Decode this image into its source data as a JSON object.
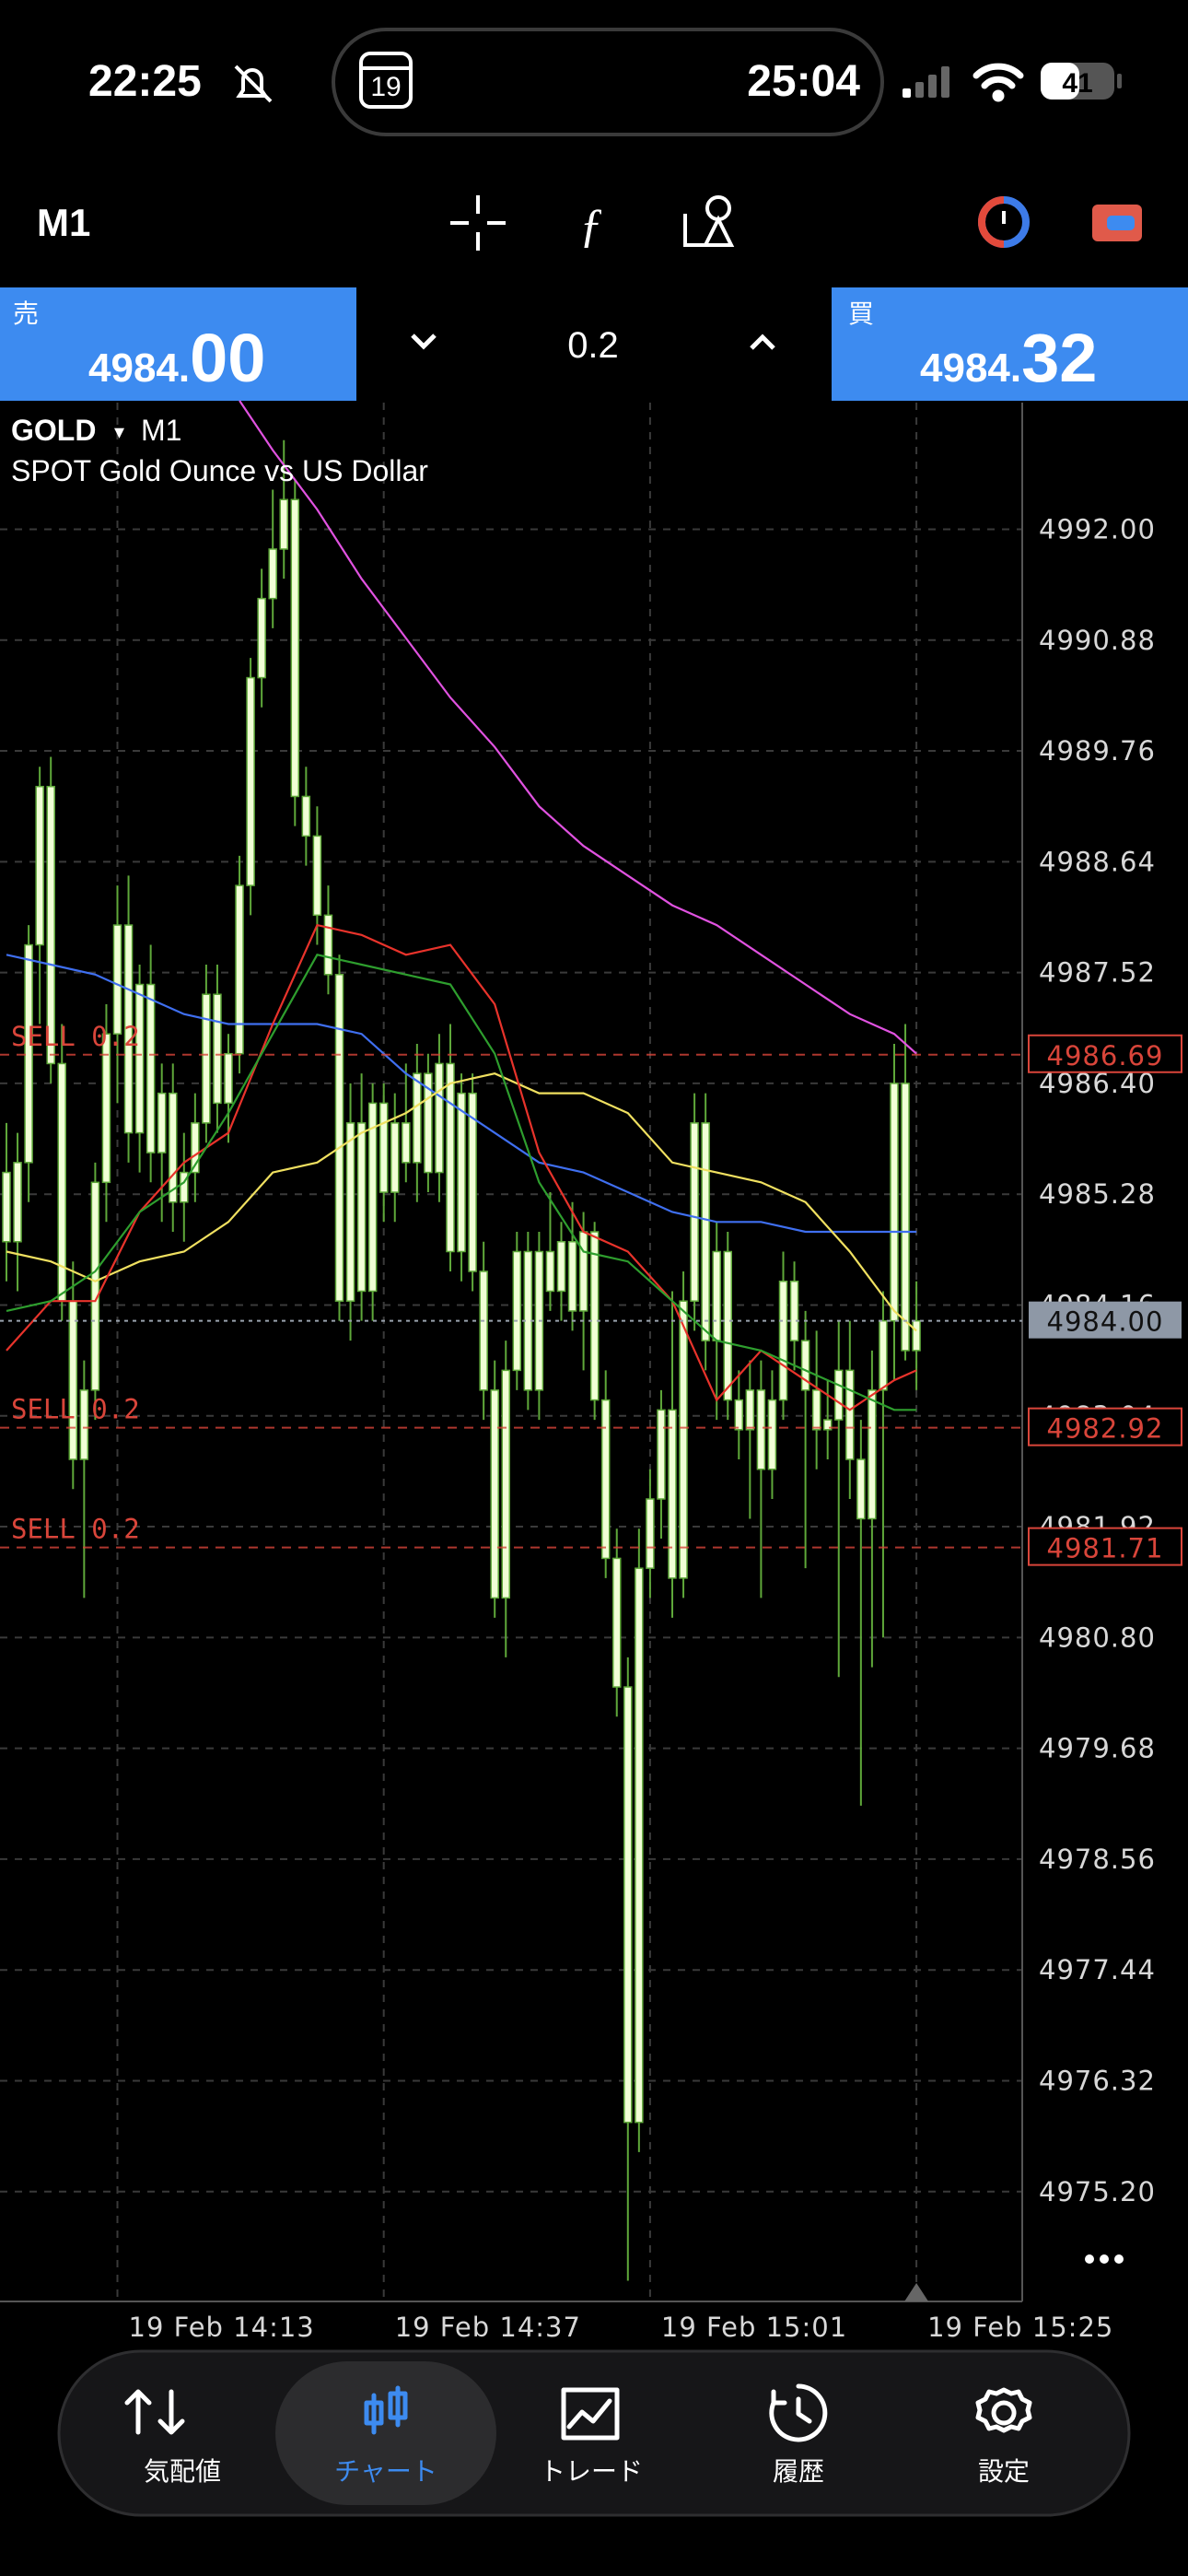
{
  "status_bar": {
    "time": "22:25",
    "calendar_day": "19",
    "timer": "25:04",
    "battery": "41"
  },
  "toolbar": {
    "timeframe": "M1"
  },
  "trade_panel": {
    "sell": {
      "label": "売",
      "price_main": "4984.",
      "price_big": "00"
    },
    "volume": "0.2",
    "buy": {
      "label": "買",
      "price_main": "4984.",
      "price_big": "32"
    }
  },
  "chart_data": {
    "type": "candlestick",
    "symbol": "GOLD",
    "timeframe": "M1",
    "subtitle": "SPOT Gold Ounce vs US Dollar",
    "categories": [
      null,
      null,
      null,
      null,
      null,
      null,
      null,
      null,
      null,
      null,
      "19 Feb 14:13",
      null,
      null,
      null,
      null,
      null,
      null,
      null,
      null,
      null,
      null,
      null,
      null,
      null,
      null,
      null,
      null,
      null,
      null,
      null,
      null,
      null,
      null,
      null,
      "19 Feb 14:37",
      null,
      null,
      null,
      null,
      null,
      null,
      null,
      null,
      null,
      null,
      null,
      null,
      null,
      null,
      null,
      null,
      null,
      null,
      null,
      null,
      null,
      null,
      null,
      "19 Feb 15:01",
      null,
      null,
      null,
      null,
      null,
      null,
      null,
      null,
      null,
      null,
      null,
      null,
      null,
      null,
      null,
      null,
      null,
      null,
      null,
      null,
      null,
      null,
      null,
      "19 Feb 15:25"
    ],
    "candles": [
      [
        4985.5,
        4986.0,
        4984.4,
        4984.8
      ],
      [
        4984.8,
        4985.9,
        4984.3,
        4985.6
      ],
      [
        4985.6,
        4988.0,
        4985.2,
        4987.8
      ],
      [
        4987.8,
        4989.6,
        4987.0,
        4989.4
      ],
      [
        4989.4,
        4989.7,
        4986.4,
        4986.6
      ],
      [
        4986.6,
        4987.0,
        4984.0,
        4984.2
      ],
      [
        4984.2,
        4984.6,
        4982.3,
        4982.6
      ],
      [
        4982.6,
        4983.6,
        4981.2,
        4983.3
      ],
      [
        4983.3,
        4985.6,
        4983.0,
        4985.4
      ],
      [
        4985.4,
        4987.2,
        4985.0,
        4986.9
      ],
      [
        4986.9,
        4988.4,
        4986.2,
        4988.0
      ],
      [
        4988.0,
        4988.5,
        4985.6,
        4985.9
      ],
      [
        4985.9,
        4987.6,
        4985.5,
        4987.4
      ],
      [
        4987.4,
        4987.8,
        4985.4,
        4985.7
      ],
      [
        4985.7,
        4986.6,
        4985.0,
        4986.3
      ],
      [
        4986.3,
        4986.6,
        4984.9,
        4985.2
      ],
      [
        4985.2,
        4985.9,
        4984.8,
        4985.5
      ],
      [
        4985.5,
        4986.3,
        4985.2,
        4986.0
      ],
      [
        4986.0,
        4987.6,
        4985.8,
        4987.3
      ],
      [
        4987.3,
        4987.6,
        4985.9,
        4986.2
      ],
      [
        4986.2,
        4986.9,
        4985.8,
        4986.7
      ],
      [
        4986.7,
        4988.7,
        4986.5,
        4988.4
      ],
      [
        4988.4,
        4990.7,
        4988.1,
        4990.5
      ],
      [
        4990.5,
        4991.6,
        4990.2,
        4991.3
      ],
      [
        4991.3,
        4992.4,
        4991.0,
        4991.8
      ],
      [
        4991.8,
        4992.9,
        4991.5,
        4992.3
      ],
      [
        4992.3,
        4992.5,
        4989.0,
        4989.3
      ],
      [
        4989.3,
        4989.6,
        4988.6,
        4988.9
      ],
      [
        4988.9,
        4989.2,
        4987.8,
        4988.1
      ],
      [
        4988.1,
        4988.4,
        4987.3,
        4987.5
      ],
      [
        4987.5,
        4987.7,
        4984.0,
        4984.2
      ],
      [
        4984.2,
        4986.4,
        4983.8,
        4986.0
      ],
      [
        4986.0,
        4986.5,
        4984.0,
        4984.3
      ],
      [
        4984.3,
        4986.4,
        4984.0,
        4986.2
      ],
      [
        4986.2,
        4986.4,
        4985.0,
        4985.3
      ],
      [
        4985.3,
        4986.3,
        4985.0,
        4986.0
      ],
      [
        4986.0,
        4986.6,
        4985.4,
        4985.6
      ],
      [
        4985.6,
        4986.8,
        4985.2,
        4986.5
      ],
      [
        4986.5,
        4986.7,
        4985.3,
        4985.5
      ],
      [
        4985.5,
        4986.9,
        4985.2,
        4986.6
      ],
      [
        4986.6,
        4987.0,
        4984.5,
        4984.7
      ],
      [
        4984.7,
        4986.5,
        4984.4,
        4986.3
      ],
      [
        4986.3,
        4986.5,
        4984.3,
        4984.5
      ],
      [
        4984.5,
        4984.8,
        4983.0,
        4983.3
      ],
      [
        4983.3,
        4983.6,
        4981.0,
        4981.2
      ],
      [
        4981.2,
        4983.8,
        4980.6,
        4983.5
      ],
      [
        4983.5,
        4984.9,
        4983.3,
        4984.7
      ],
      [
        4984.7,
        4984.9,
        4983.1,
        4983.3
      ],
      [
        4983.3,
        4984.9,
        4983.0,
        4984.7
      ],
      [
        4984.7,
        4985.3,
        4984.1,
        4984.3
      ],
      [
        4984.3,
        4985.0,
        4984.0,
        4984.8
      ],
      [
        4984.8,
        4985.2,
        4983.9,
        4984.1
      ],
      [
        4984.1,
        4985.1,
        4983.5,
        4984.9
      ],
      [
        4984.9,
        4985.0,
        4983.0,
        4983.2
      ],
      [
        4983.2,
        4983.5,
        4981.4,
        4981.6
      ],
      [
        4981.6,
        4981.9,
        4980.0,
        4980.3
      ],
      [
        4980.3,
        4980.6,
        4974.3,
        4975.9
      ],
      [
        4975.9,
        4981.9,
        4975.6,
        4981.5
      ],
      [
        4981.5,
        4982.5,
        4981.2,
        4982.2
      ],
      [
        4982.2,
        4983.3,
        4981.8,
        4983.1
      ],
      [
        4983.1,
        4984.3,
        4981.0,
        4981.4
      ],
      [
        4981.4,
        4984.5,
        4981.2,
        4984.2
      ],
      [
        4984.2,
        4986.3,
        4983.9,
        4986.0
      ],
      [
        4986.0,
        4986.3,
        4983.5,
        4983.8
      ],
      [
        4983.8,
        4985.0,
        4983.0,
        4984.7
      ],
      [
        4984.7,
        4984.9,
        4983.0,
        4983.2
      ],
      [
        4983.2,
        4983.5,
        4982.6,
        4982.9
      ],
      [
        4982.9,
        4983.6,
        4982.0,
        4983.3
      ],
      [
        4983.3,
        4983.6,
        4981.2,
        4982.5
      ],
      [
        4982.5,
        4983.5,
        4982.2,
        4983.2
      ],
      [
        4983.2,
        4984.7,
        4983.0,
        4984.4
      ],
      [
        4984.4,
        4984.6,
        4983.5,
        4983.8
      ],
      [
        4983.8,
        4984.1,
        4981.5,
        4983.3
      ],
      [
        4983.3,
        4983.9,
        4982.5,
        4982.9
      ],
      [
        4982.9,
        4983.4,
        4982.6,
        4983.0
      ],
      [
        4983.0,
        4984.0,
        4980.4,
        4983.5
      ],
      [
        4983.5,
        4984.0,
        4982.2,
        4982.6
      ],
      [
        4982.6,
        4983.0,
        4979.1,
        4982.0
      ],
      [
        4982.0,
        4983.7,
        4980.5,
        4983.3
      ],
      [
        4983.3,
        4984.3,
        4980.8,
        4984.0
      ],
      [
        4984.0,
        4986.8,
        4983.4,
        4986.4
      ],
      [
        4986.4,
        4987.0,
        4983.6,
        4983.7
      ],
      [
        4983.7,
        4984.4,
        4983.3,
        4984.0
      ]
    ],
    "candle_color": "#5fa83a",
    "candle_body_color": "#f1ffd6",
    "indicators": [
      {
        "color": "#e052e0",
        "x": [
          21,
          24,
          28,
          32,
          36,
          40,
          44,
          48,
          52,
          56,
          60,
          64,
          68,
          72,
          76,
          80,
          82
        ],
        "values": [
          4993.3,
          4992.8,
          4992.2,
          4991.5,
          4990.9,
          4990.3,
          4989.8,
          4989.2,
          4988.8,
          4988.5,
          4988.2,
          4988.0,
          4987.7,
          4987.4,
          4987.1,
          4986.9,
          4986.7
        ]
      },
      {
        "color": "#3f6ff0",
        "x": [
          0,
          4,
          8,
          12,
          16,
          20,
          24,
          28,
          32,
          36,
          40,
          44,
          48,
          52,
          56,
          60,
          64,
          68,
          72,
          76,
          80,
          82
        ],
        "values": [
          4987.7,
          4987.6,
          4987.5,
          4987.3,
          4987.1,
          4987.0,
          4987.0,
          4987.0,
          4986.9,
          4986.5,
          4986.2,
          4985.9,
          4985.6,
          4985.5,
          4985.3,
          4985.1,
          4985.0,
          4985.0,
          4984.9,
          4984.9,
          4984.9,
          4984.9
        ]
      },
      {
        "color": "#f0e060",
        "x": [
          0,
          4,
          8,
          12,
          16,
          20,
          24,
          28,
          32,
          36,
          40,
          44,
          48,
          52,
          56,
          60,
          64,
          68,
          72,
          76,
          80,
          82
        ],
        "values": [
          4984.7,
          4984.6,
          4984.4,
          4984.6,
          4984.7,
          4985.0,
          4985.5,
          4985.6,
          4985.9,
          4986.1,
          4986.4,
          4986.5,
          4986.3,
          4986.3,
          4986.1,
          4985.6,
          4985.5,
          4985.4,
          4985.2,
          4984.7,
          4984.1,
          4983.9
        ]
      },
      {
        "color": "#e8332b",
        "x": [
          0,
          4,
          8,
          12,
          16,
          20,
          24,
          28,
          32,
          36,
          40,
          44,
          48,
          52,
          56,
          60,
          64,
          68,
          72,
          76,
          80,
          82
        ],
        "values": [
          4983.7,
          4984.2,
          4984.2,
          4985.1,
          4985.6,
          4985.9,
          4987.0,
          4988.0,
          4987.9,
          4987.7,
          4987.8,
          4987.2,
          4985.7,
          4984.9,
          4984.7,
          4984.2,
          4983.2,
          4983.7,
          4983.4,
          4983.1,
          4983.4,
          4983.5
        ]
      },
      {
        "color": "#2e9e2e",
        "x": [
          0,
          4,
          8,
          12,
          16,
          20,
          24,
          28,
          32,
          36,
          40,
          44,
          48,
          52,
          56,
          60,
          64,
          68,
          72,
          76,
          80,
          82
        ],
        "values": [
          4984.1,
          4984.2,
          4984.5,
          4985.1,
          4985.4,
          4986.1,
          4986.9,
          4987.7,
          4987.6,
          4987.5,
          4987.4,
          4986.7,
          4985.4,
          4984.7,
          4984.6,
          4984.2,
          4983.8,
          4983.7,
          4983.5,
          4983.3,
          4983.1,
          4983.1
        ]
      }
    ],
    "ylim": [
      4974.09,
      4993.28
    ],
    "yticks": [
      {
        "value": 4992,
        "label": "4992.00"
      },
      4990.88,
      4989.76,
      4988.64,
      4987.52,
      {
        "value": 4986.4,
        "label": "4986.40"
      },
      4985.28,
      4984.16,
      4983.04,
      4981.92,
      {
        "value": 4980.8,
        "label": "4980.80"
      },
      4979.68,
      4978.56,
      4977.44,
      4976.32,
      {
        "value": 4975.2,
        "label": "4975.20"
      }
    ],
    "grid": true,
    "levels": [
      {
        "name": "SELL 0.2",
        "price": 4986.69,
        "color": "#d9453a"
      },
      {
        "name": "SELL 0.2",
        "price": 4982.92,
        "color": "#d9453a"
      },
      {
        "name": "SELL 0.2",
        "price": 4981.71,
        "color": "#d9453a"
      }
    ],
    "bid": {
      "price": {
        "value": 4984,
        "label": "4984.00"
      },
      "color": "#8e98a6"
    }
  },
  "nav": {
    "items": [
      {
        "label": "気配値",
        "selected": false
      },
      {
        "label": "チャート",
        "selected": true
      },
      {
        "label": "トレード",
        "selected": false
      },
      {
        "label": "履歴",
        "selected": false
      },
      {
        "label": "設定",
        "selected": false
      }
    ]
  }
}
